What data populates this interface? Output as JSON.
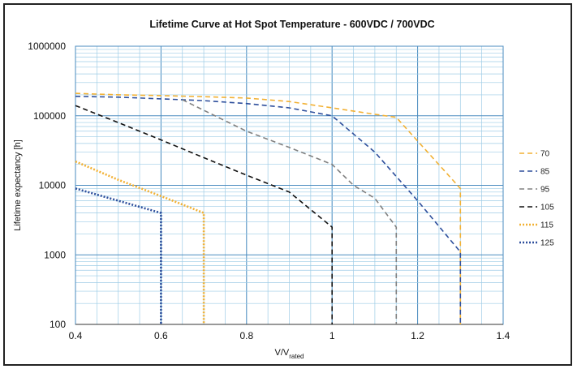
{
  "chart_data": {
    "type": "line",
    "title": "Lifetime Curve at Hot Spot Temperature - 600VDC / 700VDC",
    "xlabel_main": "V/V",
    "xlabel_sub": "rated",
    "ylabel": "Lifetime expectancy [h]",
    "xlim": [
      0.4,
      1.4
    ],
    "ylim": [
      100,
      1000000
    ],
    "yscale": "log",
    "x_ticks": [
      "0.4",
      "0.6",
      "0.8",
      "1",
      "1.2",
      "1.4"
    ],
    "y_ticks": [
      "100",
      "1000",
      "10000",
      "100000",
      "1000000"
    ],
    "grid": true,
    "legend_position": "right",
    "series": [
      {
        "name": "70",
        "color": "#F2B134",
        "dash": "dashed",
        "x": [
          0.4,
          0.5,
          0.6,
          0.7,
          0.8,
          0.9,
          1.0,
          1.1,
          1.15,
          1.3,
          1.3
        ],
        "y": [
          210000,
          200000,
          195000,
          188000,
          180000,
          160000,
          130000,
          105000,
          95000,
          9000,
          100
        ]
      },
      {
        "name": "85",
        "color": "#2E4F9C",
        "dash": "dashed",
        "x": [
          0.4,
          0.5,
          0.6,
          0.7,
          0.8,
          0.9,
          1.0,
          1.1,
          1.2,
          1.3,
          1.3
        ],
        "y": [
          190000,
          185000,
          175000,
          165000,
          150000,
          130000,
          100000,
          30000,
          6000,
          1100,
          100
        ]
      },
      {
        "name": "95",
        "color": "#808080",
        "dash": "dashed",
        "x": [
          0.65,
          0.7,
          0.8,
          0.9,
          1.0,
          1.05,
          1.1,
          1.15,
          1.15
        ],
        "y": [
          170000,
          120000,
          60000,
          35000,
          20000,
          10000,
          6500,
          2500,
          100
        ]
      },
      {
        "name": "105",
        "color": "#111111",
        "dash": "dashed",
        "x": [
          0.4,
          0.5,
          0.6,
          0.7,
          0.8,
          0.9,
          1.0,
          1.0
        ],
        "y": [
          140000,
          80000,
          45000,
          25000,
          14000,
          8000,
          2500,
          100
        ]
      },
      {
        "name": "115",
        "color": "#F2B134",
        "dash": "dotted",
        "x": [
          0.4,
          0.5,
          0.6,
          0.7,
          0.7
        ],
        "y": [
          22000,
          12000,
          7000,
          4000,
          100
        ]
      },
      {
        "name": "125",
        "color": "#2E4F9C",
        "dash": "dotted",
        "x": [
          0.4,
          0.5,
          0.6,
          0.6
        ],
        "y": [
          9000,
          6000,
          4000,
          100
        ]
      }
    ]
  }
}
